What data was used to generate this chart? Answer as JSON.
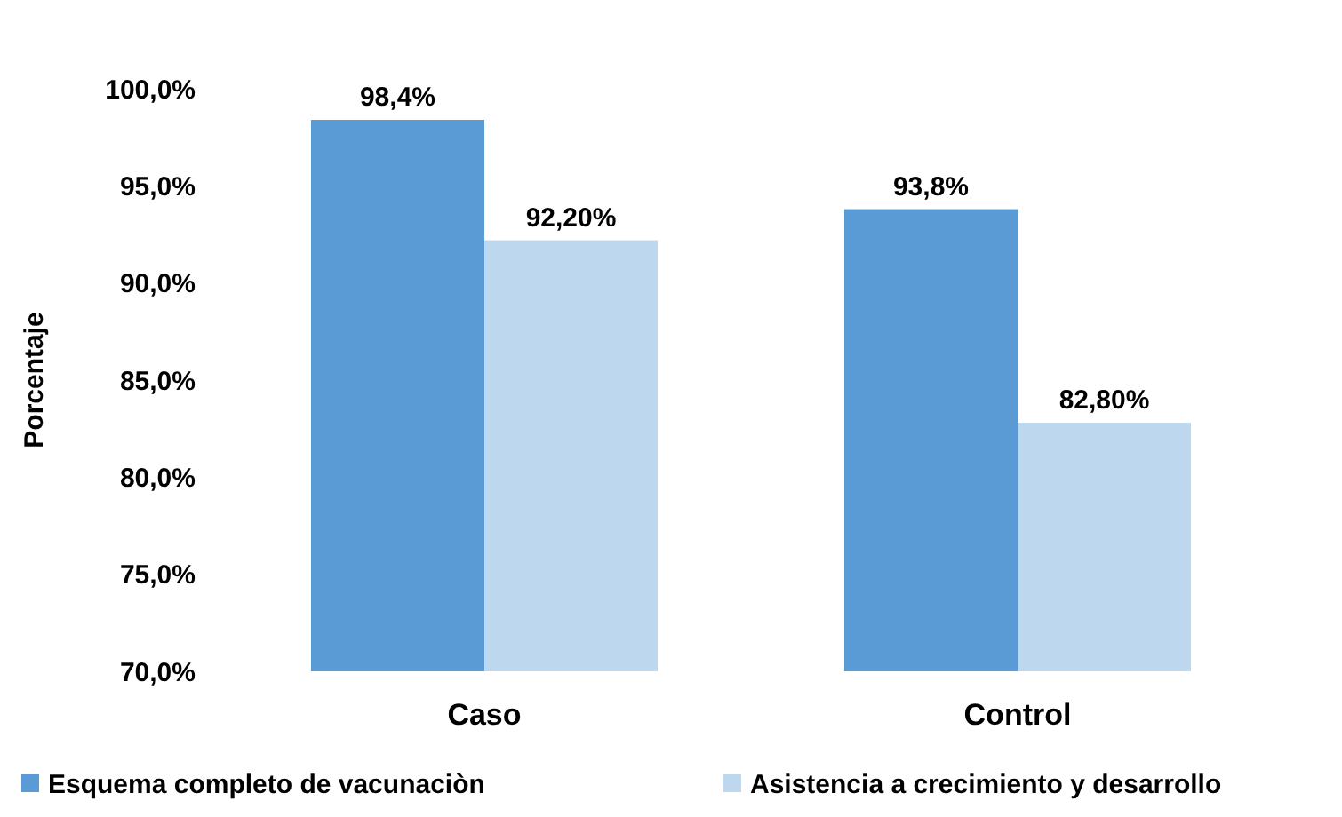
{
  "chart_data": {
    "type": "bar",
    "ylabel": "Porcentaje",
    "categories": [
      "Caso",
      "Control"
    ],
    "series": [
      {
        "name": "Esquema completo de vacunaciòn",
        "color": "#5b9bd5",
        "values": [
          98.4,
          93.8
        ],
        "value_labels": [
          "98,4%",
          "93,8%"
        ]
      },
      {
        "name": "Asistencia a crecimiento y desarrollo",
        "color": "#bdd7ee",
        "values": [
          92.2,
          82.8
        ],
        "value_labels": [
          "92,20%",
          "82,80%"
        ]
      }
    ],
    "ylim": [
      70,
      100
    ],
    "yticks": [
      {
        "value": 70,
        "label": "70,0%"
      },
      {
        "value": 75,
        "label": "75,0%"
      },
      {
        "value": 80,
        "label": "80,0%"
      },
      {
        "value": 85,
        "label": "85,0%"
      },
      {
        "value": 90,
        "label": "90,0%"
      },
      {
        "value": 95,
        "label": "95,0%"
      },
      {
        "value": 100,
        "label": "100,0%"
      }
    ],
    "grid": false,
    "legend": "bottom"
  }
}
